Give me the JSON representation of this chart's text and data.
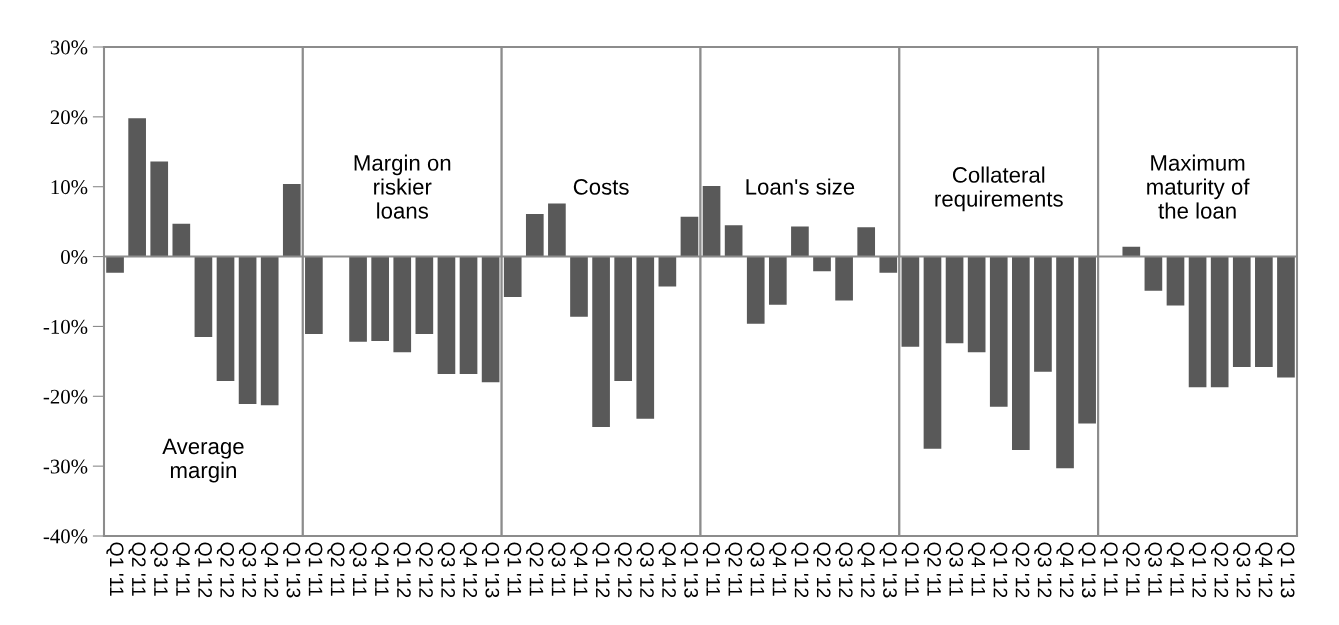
{
  "chart_data": [
    {
      "type": "bar",
      "categories": [
        "Q1 '11",
        "Q2 '11",
        "Q3 '11",
        "Q4 '11",
        "Q1 '12",
        "Q2 '12",
        "Q3 '12",
        "Q4 '12",
        "Q1 '13"
      ],
      "values": [
        -2.3,
        19.8,
        13.6,
        4.7,
        -11.5,
        -17.8,
        -21.1,
        -21.3,
        10.4
      ],
      "color": "#595959",
      "ylim": [
        -40,
        30
      ],
      "yticks": [
        {
          "value": -40,
          "label": "-40%"
        },
        {
          "value": -30,
          "label": "-30%"
        },
        {
          "value": -20,
          "label": "-20%"
        },
        {
          "value": -10,
          "label": "-10%"
        },
        {
          "value": 0,
          "label": "0%"
        },
        {
          "value": 10,
          "label": "10%"
        },
        {
          "value": 20,
          "label": "20%"
        },
        {
          "value": 30,
          "label": "30%"
        }
      ],
      "annotations": [
        "Average\nmargin"
      ]
    },
    {
      "type": "bar",
      "categories": [
        "Q1 '11",
        "Q2 '11",
        "Q3 '11",
        "Q4 '11",
        "Q1 '12",
        "Q2 '12",
        "Q3 '12",
        "Q4 '12",
        "Q1 '13"
      ],
      "values": [
        -11.1,
        null,
        -12.2,
        -12.1,
        -13.7,
        -11.1,
        -16.8,
        -16.8,
        -18.0
      ],
      "color": "#595959",
      "ylim": [
        -40,
        30
      ],
      "tick_labels": "x",
      "annotations": [
        "Margin on\nriskier\nloans"
      ]
    },
    {
      "type": "bar",
      "categories": [
        "Q1 '11",
        "Q2 '11",
        "Q3 '11",
        "Q4 '11",
        "Q1 '12",
        "Q2 '12",
        "Q3 '12",
        "Q4 '12",
        "Q1 '13"
      ],
      "values": [
        -5.8,
        6.1,
        7.6,
        -8.6,
        -24.4,
        -17.8,
        -23.2,
        -4.3,
        5.7
      ],
      "color": "#595959",
      "ylim": [
        -40,
        30
      ],
      "tick_labels": "x",
      "annotations": [
        "Costs"
      ]
    },
    {
      "type": "bar",
      "categories": [
        "Q1 '11",
        "Q2 '11",
        "Q3 '11",
        "Q4 '11",
        "Q1 '12",
        "Q2 '12",
        "Q3 '12",
        "Q4 '12",
        "Q1 '13"
      ],
      "values": [
        10.1,
        4.5,
        -9.6,
        -6.9,
        4.3,
        -2.1,
        -6.3,
        4.2,
        -2.3
      ],
      "color": "#595959",
      "ylim": [
        -40,
        30
      ],
      "tick_labels": "x",
      "annotations": [
        "Loan's size"
      ]
    },
    {
      "type": "bar",
      "categories": [
        "Q1 '11",
        "Q2 '11",
        "Q3 '11",
        "Q4 '11",
        "Q1 '12",
        "Q2 '12",
        "Q3 '12",
        "Q4 '12",
        "Q1 '13"
      ],
      "values": [
        -12.9,
        -27.5,
        -12.4,
        -13.7,
        -21.5,
        -27.7,
        -16.5,
        -30.3,
        -23.9
      ],
      "color": "#595959",
      "ylim": [
        -40,
        30
      ],
      "tick_labels": "x",
      "annotations": [
        "Collateral\nrequirements"
      ]
    },
    {
      "type": "bar",
      "categories": [
        "Q1 '11",
        "Q2 '11",
        "Q3 '11",
        "Q4 '11",
        "Q1 '12",
        "Q2 '12",
        "Q3 '12",
        "Q4 '12",
        "Q1 '13"
      ],
      "values": [
        null,
        1.4,
        -4.9,
        -7.0,
        -18.7,
        -18.7,
        -15.8,
        -15.8,
        -17.3
      ],
      "color": "#595959",
      "ylim": [
        -40,
        30
      ],
      "tick_labels": "x",
      "annotations": [
        "Maximum\nmaturity of\nthe loan"
      ]
    }
  ]
}
